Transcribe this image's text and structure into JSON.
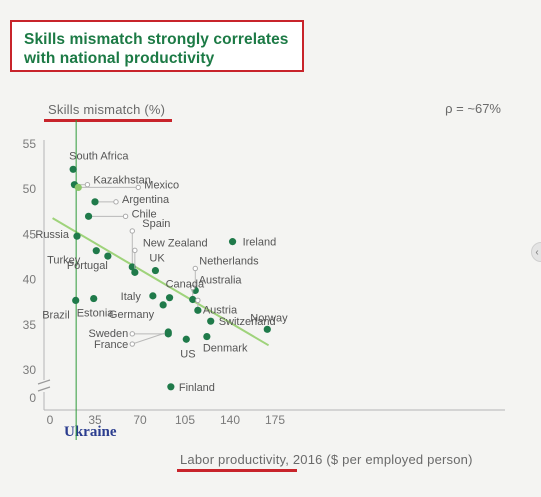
{
  "title": {
    "line1": "Skills mismatch strongly correlates",
    "line2": "with national productivity"
  },
  "annotation": "Ukraine",
  "colors": {
    "accent": "#c8242b",
    "title": "#1c7a45",
    "point": "#1f7a4a",
    "highlight": "#8cc66a",
    "trend": "#9fd37b",
    "marker_line": "#2e9a3a",
    "annotation": "#2b3d8f"
  },
  "chart_data": {
    "type": "scatter",
    "xlabel_underlined": "Labor productivity",
    "xlabel_rest": ", 2016 ($ per employed person)",
    "ylabel": "Skills mismatch (%)",
    "correlation": "ρ = ~67%",
    "xlim": [
      0,
      175
    ],
    "x_ticks": [
      "0",
      "35",
      "70",
      "105",
      "140",
      "175"
    ],
    "x_tick_values": [
      0,
      35,
      70,
      105,
      140,
      175
    ],
    "ylim": [
      0,
      55
    ],
    "y_ticks": [
      "0",
      "30",
      "35",
      "40",
      "45",
      "50",
      "55"
    ],
    "y_tick_values": [
      0,
      30,
      35,
      40,
      45,
      50,
      55
    ],
    "y_axis_break": true,
    "trend_line": {
      "from": [
        2,
        46.8
      ],
      "to": [
        170,
        34.5
      ]
    },
    "reference_line_x": 18,
    "points": [
      {
        "name": "South Africa",
        "x": 18,
        "y": 52.2
      },
      {
        "name": "Kazakhstan",
        "x": 19,
        "y": 50.5
      },
      {
        "name": "Mexico",
        "x": 22,
        "y": 50.2,
        "highlight": true
      },
      {
        "name": "Argentina",
        "x": 35,
        "y": 48.6
      },
      {
        "name": "Chile",
        "x": 30,
        "y": 47.0
      },
      {
        "name": "Russia",
        "x": 21,
        "y": 44.8
      },
      {
        "name": "Turkey",
        "x": 36,
        "y": 43.2
      },
      {
        "name": "Portugal",
        "x": 45,
        "y": 42.6
      },
      {
        "name": "Spain",
        "x": 64,
        "y": 41.4
      },
      {
        "name": "New Zealand",
        "x": 66,
        "y": 40.8
      },
      {
        "name": "UK",
        "x": 82,
        "y": 41.0
      },
      {
        "name": "Ireland",
        "x": 142,
        "y": 44.2
      },
      {
        "name": "Netherlands",
        "x": 113,
        "y": 38.8
      },
      {
        "name": "Australia",
        "x": 111,
        "y": 37.8
      },
      {
        "name": "Austria",
        "x": 115,
        "y": 36.6
      },
      {
        "name": "Canada",
        "x": 93,
        "y": 38.0
      },
      {
        "name": "Italy",
        "x": 80,
        "y": 38.2
      },
      {
        "name": "Germany",
        "x": 88,
        "y": 37.2
      },
      {
        "name": "Switzerland",
        "x": 125,
        "y": 35.4
      },
      {
        "name": "Sweden",
        "x": 92,
        "y": 34.0
      },
      {
        "name": "France",
        "x": 92,
        "y": 34.2
      },
      {
        "name": "US",
        "x": 106,
        "y": 33.4
      },
      {
        "name": "Denmark",
        "x": 122,
        "y": 33.7
      },
      {
        "name": "Norway",
        "x": 169,
        "y": 34.5
      },
      {
        "name": "Brazil",
        "x": 20,
        "y": 37.7
      },
      {
        "name": "Estonia",
        "x": 34,
        "y": 37.9
      },
      {
        "name": "Finland",
        "x": 94,
        "y": 12.0
      }
    ]
  }
}
